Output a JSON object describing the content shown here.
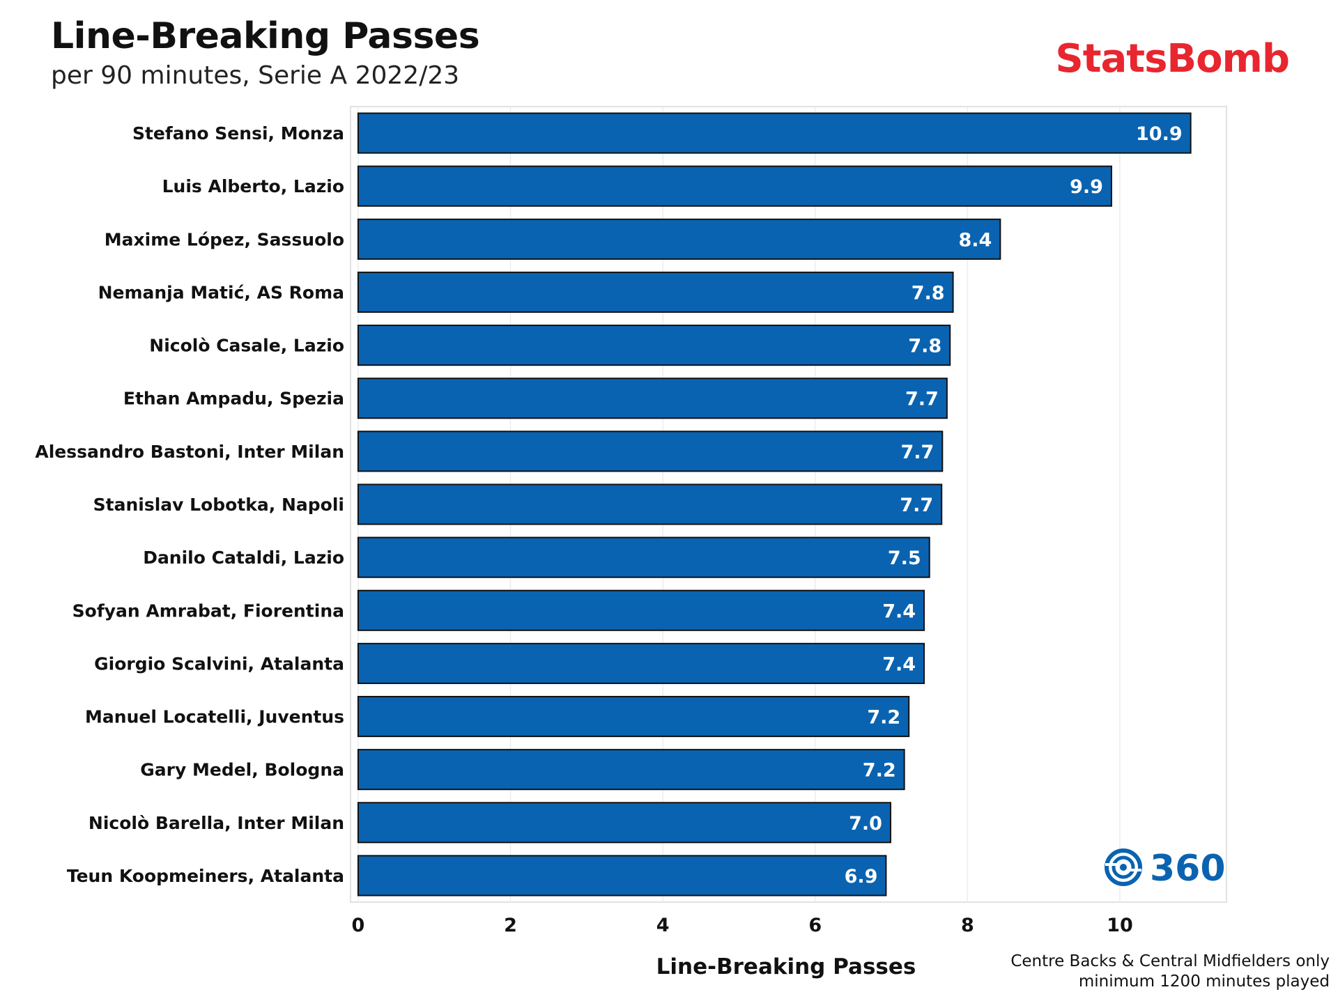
{
  "header": {
    "title": "Line-Breaking Passes",
    "subtitle": "per 90 minutes, Serie A 2022/23",
    "brand": "StatsBomb"
  },
  "badge": {
    "label": "360",
    "icon": "statsbomb-360-icon"
  },
  "footnote": {
    "line1": "Centre Backs & Central Midfielders only",
    "line2": "minimum 1200 minutes played"
  },
  "colors": {
    "bar": "#0a63b0",
    "brand": "#e8262f",
    "badge": "#0a63b0"
  },
  "chart_data": {
    "type": "bar",
    "orientation": "horizontal",
    "title": "Line-Breaking Passes",
    "subtitle": "per 90 minutes, Serie A 2022/23",
    "xlabel": "Line-Breaking Passes",
    "ylabel": "",
    "xlim": [
      -0.1,
      11.4
    ],
    "xticks": [
      0,
      2,
      4,
      6,
      8,
      10
    ],
    "grid": true,
    "categories": [
      "Stefano Sensi, Monza",
      "Luis Alberto, Lazio",
      "Maxime López, Sassuolo",
      "Nemanja Matić, AS Roma",
      "Nicolò Casale, Lazio",
      "Ethan Ampadu, Spezia",
      "Alessandro Bastoni, Inter Milan",
      "Stanislav Lobotka, Napoli",
      "Danilo Cataldi, Lazio",
      "Sofyan Amrabat, Fiorentina",
      "Giorgio Scalvini, Atalanta",
      "Manuel Locatelli, Juventus",
      "Gary Medel, Bologna",
      "Nicolò Barella, Inter Milan",
      "Teun Koopmeiners, Atalanta"
    ],
    "values": [
      10.93,
      9.89,
      8.43,
      7.81,
      7.77,
      7.73,
      7.67,
      7.66,
      7.5,
      7.43,
      7.43,
      7.23,
      7.17,
      6.99,
      6.93
    ],
    "labels": [
      "10.9",
      "9.9",
      "8.4",
      "7.8",
      "7.8",
      "7.7",
      "7.7",
      "7.7",
      "7.5",
      "7.4",
      "7.4",
      "7.2",
      "7.2",
      "7.0",
      "6.9"
    ]
  }
}
